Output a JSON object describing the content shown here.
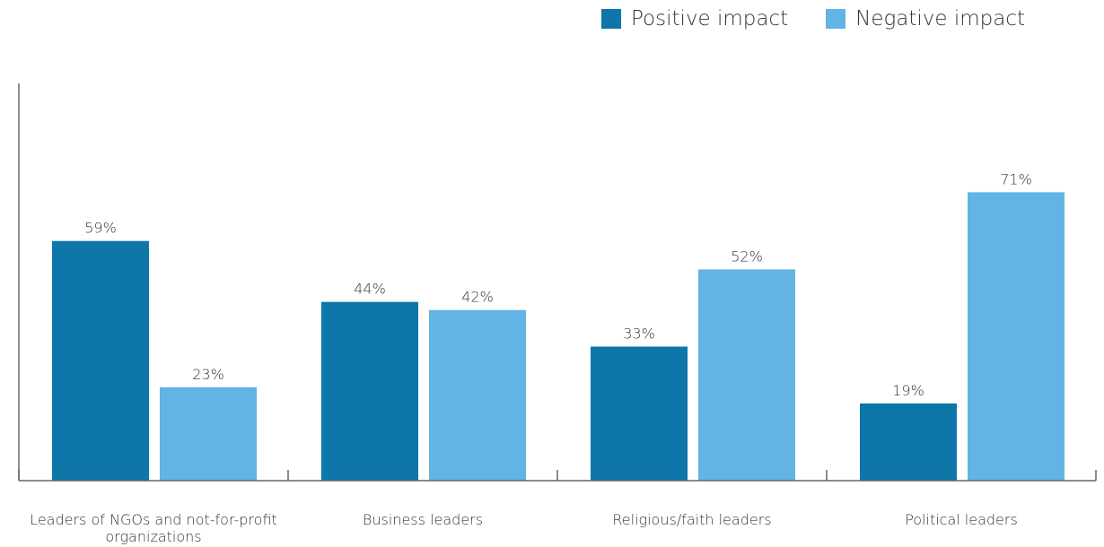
{
  "chart_data": {
    "type": "bar",
    "categories": [
      "Leaders of NGOs and not-for-profit organizations",
      "Business leaders",
      "Religious/faith leaders",
      "Political leaders"
    ],
    "series": [
      {
        "name": "Positive impact",
        "values": [
          59,
          44,
          33,
          19
        ],
        "color": "#0e76a8"
      },
      {
        "name": "Negative impact",
        "values": [
          23,
          42,
          52,
          71
        ],
        "color": "#61b4e4"
      }
    ],
    "value_suffix": "%",
    "ylim": [
      0,
      78
    ],
    "grid": false,
    "legend_position": "top-right",
    "title": "",
    "xlabel": "",
    "ylabel": ""
  }
}
